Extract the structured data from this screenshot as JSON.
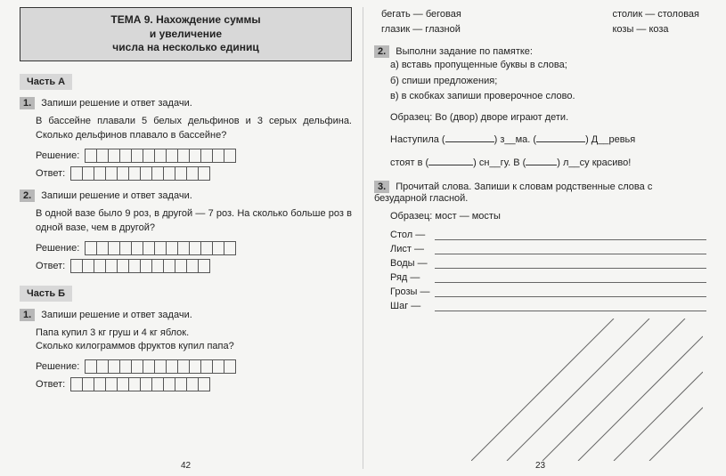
{
  "leftPage": {
    "title_l1": "ТЕМА 9. Нахождение суммы",
    "title_l2": "и увеличение",
    "title_l3": "числа на несколько единиц",
    "partA": "Часть А",
    "t1": {
      "num": "1.",
      "title": "Запиши решение и ответ задачи.",
      "body": "В бассейне плавали 5 белых дельфинов и 3 серых дельфина. Сколько дельфинов плавало в бассейне?",
      "sol": "Решение:",
      "ans": "Ответ:"
    },
    "t2": {
      "num": "2.",
      "title": "Запиши решение и ответ задачи.",
      "body": "В одной вазе было 9 роз, в другой — 7 роз. На сколько больше роз в одной вазе, чем в другой?",
      "sol": "Решение:",
      "ans": "Ответ:"
    },
    "partB": "Часть Б",
    "t3": {
      "num": "1.",
      "title": "Запиши решение и ответ задачи.",
      "body1": "Папа купил 3 кг груш и 4 кг яблок.",
      "body2": "Сколько килограммов фруктов купил папа?",
      "sol": "Решение:",
      "ans": "Ответ:"
    },
    "pgnum": "42",
    "cells_sol": 13,
    "cells_ans": 12
  },
  "rightPage": {
    "pairs": {
      "l1a": "бегать — беговая",
      "l1b": "столик — столовая",
      "l2a": "глазик — глазной",
      "l2b": "козы — коза"
    },
    "t2": {
      "num": "2.",
      "title": "Выполни задание по памятке:",
      "a": "а) вставь пропущенные буквы в слова;",
      "b": "б) спиши предложения;",
      "c": "в) в скобках запиши проверочное слово.",
      "sample": "Образец: Во (двор) дворе играют дети.",
      "fill1a": "Наступила (",
      "fill1b": ") з__ма. (",
      "fill1c": ") Д__ревья",
      "fill2a": "стоят в (",
      "fill2b": ") сн__гу. В (",
      "fill2c": ") л__су красиво!"
    },
    "t3": {
      "num": "3.",
      "title": "Прочитай слова. Запиши к словам родственные слова с безударной гласной.",
      "sample": "Образец: мост — мосты",
      "words": [
        "Стол —",
        "Лист —",
        "Воды —",
        "Ряд —",
        "Грозы —",
        "Шаг —"
      ]
    },
    "pgnum": "23"
  }
}
